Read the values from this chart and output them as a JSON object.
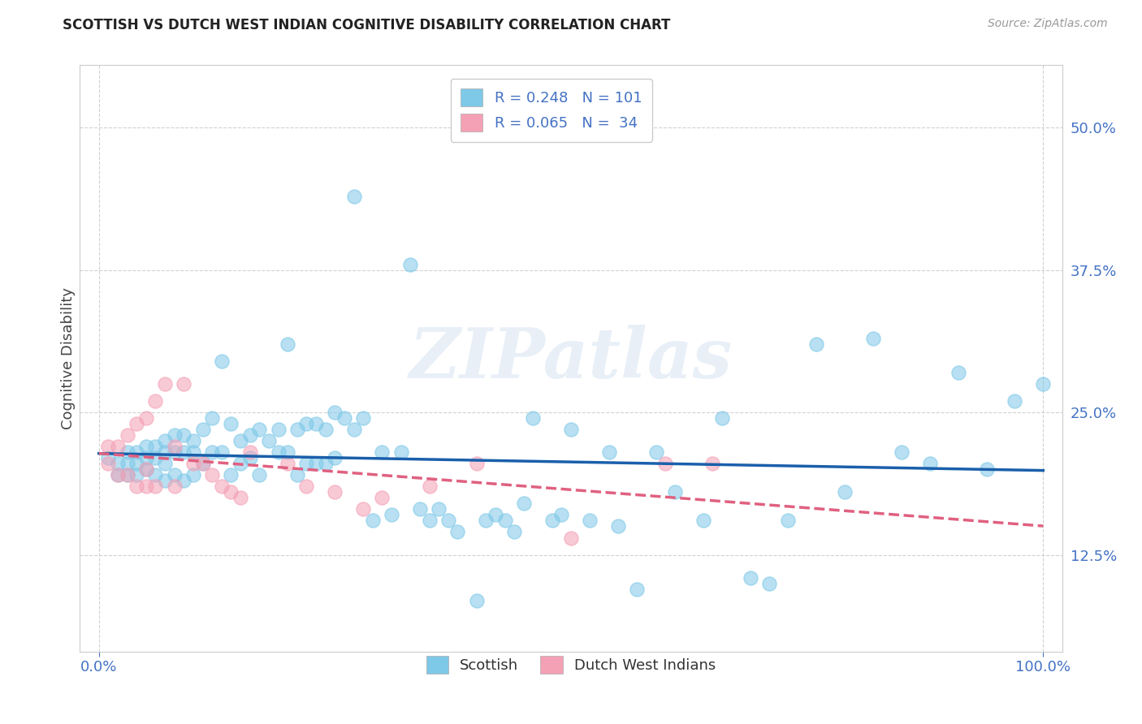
{
  "title": "SCOTTISH VS DUTCH WEST INDIAN COGNITIVE DISABILITY CORRELATION CHART",
  "source": "Source: ZipAtlas.com",
  "ylabel": "Cognitive Disability",
  "yticks_labels": [
    "12.5%",
    "25.0%",
    "37.5%",
    "50.0%"
  ],
  "ytick_vals": [
    0.125,
    0.25,
    0.375,
    0.5
  ],
  "ylim": [
    0.04,
    0.555
  ],
  "xlim": [
    -0.02,
    1.02
  ],
  "scottish_R": 0.248,
  "scottish_N": 101,
  "dutch_R": 0.065,
  "dutch_N": 34,
  "scottish_color": "#7EC8E8",
  "dutch_color": "#F4A0B5",
  "trend_scottish_color": "#1A5FAB",
  "trend_dutch_color": "#E06080",
  "background_color": "#FFFFFF",
  "grid_color": "#CCCCCC",
  "watermark": "ZIPatlas",
  "scottish_x": [
    0.01,
    0.02,
    0.02,
    0.03,
    0.03,
    0.03,
    0.04,
    0.04,
    0.04,
    0.05,
    0.05,
    0.05,
    0.06,
    0.06,
    0.06,
    0.07,
    0.07,
    0.07,
    0.07,
    0.08,
    0.08,
    0.08,
    0.09,
    0.09,
    0.09,
    0.1,
    0.1,
    0.1,
    0.11,
    0.11,
    0.12,
    0.12,
    0.13,
    0.13,
    0.14,
    0.14,
    0.15,
    0.15,
    0.16,
    0.16,
    0.17,
    0.17,
    0.18,
    0.19,
    0.19,
    0.2,
    0.2,
    0.21,
    0.21,
    0.22,
    0.22,
    0.23,
    0.23,
    0.24,
    0.24,
    0.25,
    0.25,
    0.26,
    0.27,
    0.28,
    0.29,
    0.3,
    0.31,
    0.32,
    0.34,
    0.35,
    0.36,
    0.37,
    0.38,
    0.4,
    0.41,
    0.42,
    0.43,
    0.44,
    0.45,
    0.46,
    0.48,
    0.49,
    0.5,
    0.52,
    0.54,
    0.55,
    0.57,
    0.59,
    0.61,
    0.64,
    0.66,
    0.69,
    0.71,
    0.73,
    0.76,
    0.79,
    0.82,
    0.85,
    0.88,
    0.91,
    0.94,
    0.97,
    1.0,
    0.27,
    0.33
  ],
  "scottish_y": [
    0.21,
    0.205,
    0.195,
    0.215,
    0.205,
    0.195,
    0.215,
    0.205,
    0.195,
    0.22,
    0.21,
    0.2,
    0.22,
    0.21,
    0.195,
    0.225,
    0.215,
    0.205,
    0.19,
    0.23,
    0.215,
    0.195,
    0.23,
    0.215,
    0.19,
    0.225,
    0.215,
    0.195,
    0.235,
    0.205,
    0.245,
    0.215,
    0.295,
    0.215,
    0.24,
    0.195,
    0.225,
    0.205,
    0.23,
    0.21,
    0.235,
    0.195,
    0.225,
    0.235,
    0.215,
    0.31,
    0.215,
    0.235,
    0.195,
    0.24,
    0.205,
    0.24,
    0.205,
    0.235,
    0.205,
    0.25,
    0.21,
    0.245,
    0.235,
    0.245,
    0.155,
    0.215,
    0.16,
    0.215,
    0.165,
    0.155,
    0.165,
    0.155,
    0.145,
    0.085,
    0.155,
    0.16,
    0.155,
    0.145,
    0.17,
    0.245,
    0.155,
    0.16,
    0.235,
    0.155,
    0.215,
    0.15,
    0.095,
    0.215,
    0.18,
    0.155,
    0.245,
    0.105,
    0.1,
    0.155,
    0.31,
    0.18,
    0.315,
    0.215,
    0.205,
    0.285,
    0.2,
    0.26,
    0.275,
    0.44,
    0.38
  ],
  "dutch_x": [
    0.01,
    0.01,
    0.02,
    0.02,
    0.03,
    0.03,
    0.04,
    0.04,
    0.05,
    0.05,
    0.05,
    0.06,
    0.06,
    0.07,
    0.08,
    0.08,
    0.09,
    0.1,
    0.11,
    0.12,
    0.13,
    0.14,
    0.15,
    0.16,
    0.2,
    0.22,
    0.25,
    0.28,
    0.3,
    0.35,
    0.4,
    0.5,
    0.6,
    0.65
  ],
  "dutch_y": [
    0.22,
    0.205,
    0.22,
    0.195,
    0.23,
    0.195,
    0.24,
    0.185,
    0.245,
    0.2,
    0.185,
    0.26,
    0.185,
    0.275,
    0.22,
    0.185,
    0.275,
    0.205,
    0.205,
    0.195,
    0.185,
    0.18,
    0.175,
    0.215,
    0.205,
    0.185,
    0.18,
    0.165,
    0.175,
    0.185,
    0.205,
    0.14,
    0.205,
    0.205
  ]
}
